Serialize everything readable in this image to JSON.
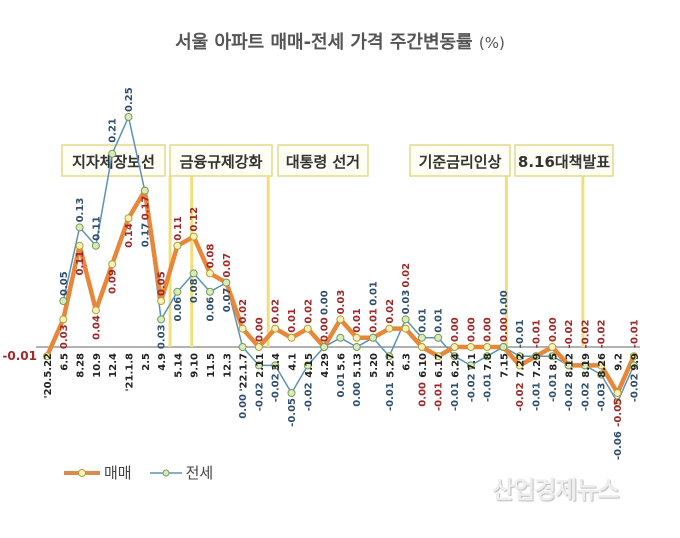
{
  "chart_data": {
    "type": "line",
    "title": "서울 아파트 매매-전세 가격 주간변동률",
    "unit": "(%)",
    "categories": [
      "'20.5.22",
      "6.5",
      "8.28",
      "10.9",
      "12.4",
      "'21.1.8",
      "2.5",
      "4.9",
      "5.14",
      "9.10",
      "11.5",
      "12.3",
      "'22.1.7",
      "2.11",
      "3.4",
      "4.1",
      "4.15",
      "4.29",
      "5.6",
      "5.13",
      "5.20",
      "5.27",
      "6.3",
      "6.10",
      "6.17",
      "6.24",
      "7.1",
      "7.8",
      "7.15",
      "7.22",
      "7.29",
      "8.5",
      "8.12",
      "8.19",
      "8.26",
      "9.2",
      "9.9"
    ],
    "series": [
      {
        "name": "매매",
        "color": "#e8873a",
        "values": [
          -0.01,
          0.03,
          0.11,
          0.04,
          0.09,
          0.14,
          0.17,
          0.05,
          0.11,
          0.12,
          0.08,
          0.07,
          0.02,
          0.0,
          0.02,
          0.01,
          0.02,
          0.0,
          0.03,
          0.01,
          0.01,
          0.02,
          0.02,
          0.0,
          -0.01,
          0.0,
          0.0,
          0.0,
          0.0,
          -0.02,
          -0.01,
          0.0,
          -0.02,
          -0.02,
          -0.02,
          -0.05,
          -0.01
        ]
      },
      {
        "name": "전세",
        "color": "#5b93b8",
        "values": [
          null,
          0.05,
          0.13,
          0.11,
          0.21,
          0.25,
          0.17,
          0.03,
          0.06,
          0.08,
          0.06,
          0.07,
          0.0,
          -0.02,
          -0.02,
          -0.05,
          -0.02,
          0.0,
          0.01,
          0.0,
          0.01,
          -0.01,
          0.03,
          0.01,
          0.01,
          -0.01,
          -0.02,
          -0.01,
          0.0,
          -0.01,
          -0.01,
          -0.01,
          -0.02,
          -0.02,
          -0.03,
          -0.06,
          -0.02
        ]
      }
    ],
    "annotations": [
      {
        "label": "지자체장보선",
        "at": "4.9"
      },
      {
        "label": "금융규제강화",
        "at": "9.10"
      },
      {
        "label": "대통령 선거",
        "at": "3.4"
      },
      {
        "label": "기준금리인상",
        "at": "7.15"
      },
      {
        "label": "8.16대책발표",
        "at": "8.19"
      }
    ],
    "legend_position": "bottom-left",
    "grid": false
  },
  "watermark": "산업경제뉴스"
}
